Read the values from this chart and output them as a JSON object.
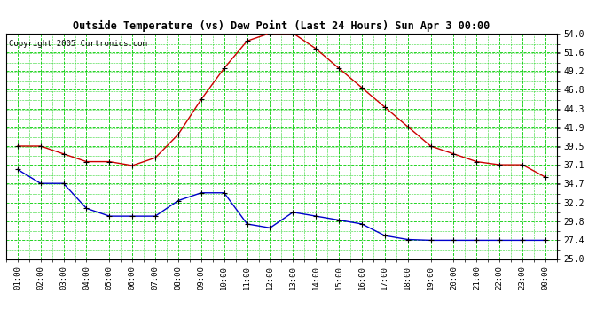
{
  "title": "Outside Temperature (vs) Dew Point (Last 24 Hours) Sun Apr 3 00:00",
  "copyright": "Copyright 2005 Curtronics.com",
  "x_labels": [
    "01:00",
    "02:00",
    "03:00",
    "04:00",
    "05:00",
    "06:00",
    "07:00",
    "08:00",
    "09:00",
    "10:00",
    "11:00",
    "12:00",
    "13:00",
    "14:00",
    "15:00",
    "16:00",
    "17:00",
    "18:00",
    "19:00",
    "20:00",
    "21:00",
    "22:00",
    "23:00",
    "00:00"
  ],
  "y_ticks": [
    25.0,
    27.4,
    29.8,
    32.2,
    34.7,
    37.1,
    39.5,
    41.9,
    44.3,
    46.8,
    49.2,
    51.6,
    54.0
  ],
  "y_min": 25.0,
  "y_max": 54.0,
  "temp_color": "#cc0000",
  "dew_color": "#0000cc",
  "bg_color": "#ffffff",
  "grid_color": "#00cc00",
  "title_color": "#000000",
  "copyright_color": "#000000",
  "temp_data": [
    39.5,
    39.5,
    38.5,
    37.5,
    37.5,
    37.0,
    38.0,
    41.0,
    45.5,
    49.5,
    53.0,
    54.0,
    54.0,
    52.0,
    49.5,
    47.0,
    44.5,
    42.0,
    39.5,
    38.5,
    37.5,
    37.1,
    37.1,
    35.5
  ],
  "dew_data": [
    36.5,
    34.7,
    34.7,
    31.5,
    30.5,
    30.5,
    30.5,
    32.5,
    33.5,
    33.5,
    29.5,
    29.0,
    31.0,
    30.5,
    30.0,
    29.5,
    28.0,
    27.5,
    27.4,
    27.4,
    27.4,
    27.4,
    27.4,
    27.4
  ]
}
